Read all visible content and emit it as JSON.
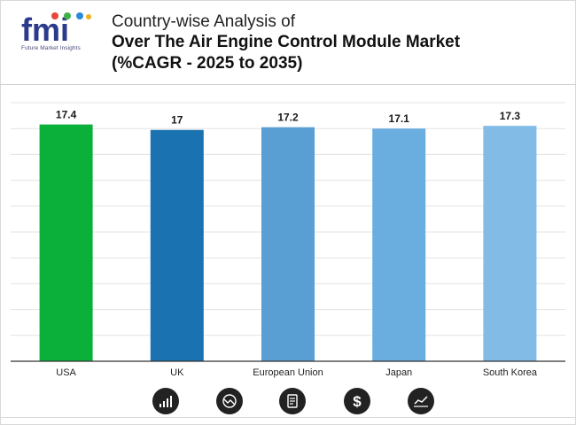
{
  "header": {
    "logo_text": "fmi",
    "logo_subtitle": "Future Market Insights",
    "title_line1": "Country-wise Analysis of",
    "title_line2": "Over The Air Engine Control Module Market",
    "title_line3": "(%CAGR - 2025 to 2035)"
  },
  "colors": {
    "usa": "#0ab03a",
    "uk": "#1a72b0",
    "european_union": "#5a9fd4",
    "japan": "#6aaee0",
    "south_korea": "#82bbe6",
    "gridline": "#e3e3e3",
    "axis": "#333333"
  },
  "chart_data": {
    "type": "bar",
    "title": "Over The Air Engine Control Module Market",
    "categories": [
      "USA",
      "UK",
      "European Union",
      "Japan",
      "South Korea"
    ],
    "values": [
      17.4,
      17,
      17.2,
      17.1,
      17.3
    ],
    "data_labels": [
      "17.4",
      "17",
      "17.2",
      "17.1",
      "17.3"
    ],
    "bar_colors": [
      "#0ab03a",
      "#1a72b0",
      "#5a9fd4",
      "#6aaee0",
      "#82bbe6"
    ],
    "xlabel": "",
    "ylabel": "",
    "ylim": [
      0,
      19
    ],
    "grid": true,
    "legend": "none"
  },
  "footer_icons": [
    "bar-growth-icon",
    "trend-circle-icon",
    "document-icon",
    "dollar-icon",
    "line-chart-icon"
  ]
}
